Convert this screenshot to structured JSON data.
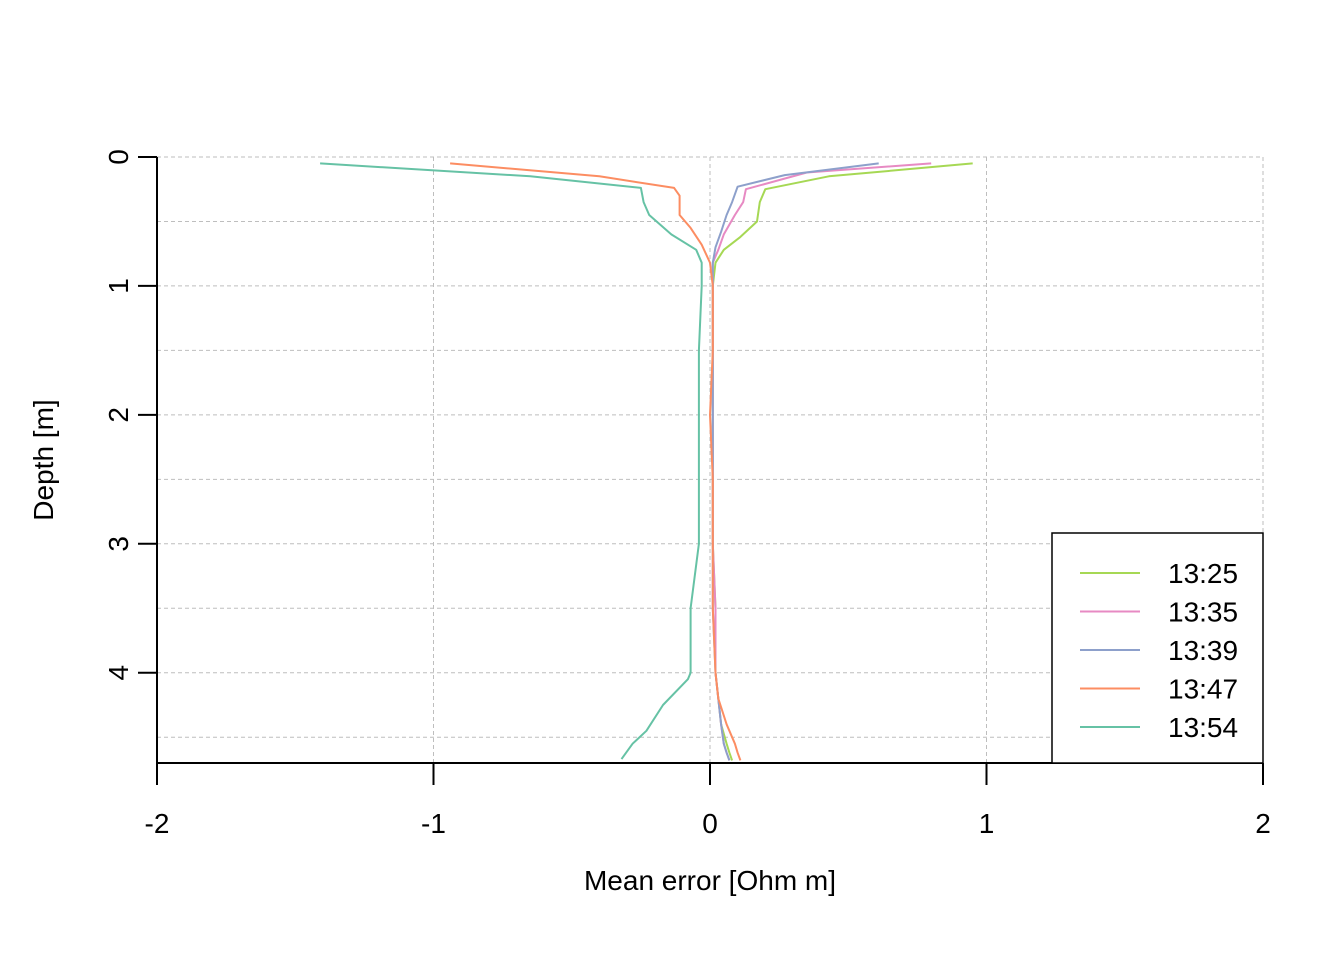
{
  "chart_data": {
    "type": "line",
    "title": "",
    "xlabel": "Mean error [Ohm m]",
    "ylabel": "Depth [m]",
    "xlim": [
      -2,
      2
    ],
    "ylim": [
      4.7,
      0
    ],
    "x_ticks": [
      "-2",
      "-1",
      "0",
      "1",
      "2"
    ],
    "y_ticks": [
      "0",
      "1",
      "2",
      "3",
      "4"
    ],
    "grid": true,
    "legend_position": "bottom-right",
    "series": [
      {
        "name": "13:25",
        "color": "#a6d854",
        "x": [
          0.95,
          0.43,
          0.2,
          0.18,
          0.17,
          0.11,
          0.05,
          0.02,
          0.01,
          0.01,
          0.01,
          0.01,
          0.01,
          0.02,
          0.02,
          0.03,
          0.04,
          0.06,
          0.07,
          0.08
        ],
        "y": [
          0.05,
          0.15,
          0.25,
          0.35,
          0.5,
          0.62,
          0.72,
          0.82,
          1.0,
          1.5,
          2.0,
          2.5,
          3.0,
          3.5,
          4.0,
          4.2,
          4.4,
          4.55,
          4.62,
          4.68
        ]
      },
      {
        "name": "13:35",
        "color": "#e78ac3",
        "x": [
          0.8,
          0.35,
          0.13,
          0.12,
          0.09,
          0.05,
          0.03,
          0.01,
          0.01,
          0.01,
          0.01,
          0.01,
          0.01,
          0.02,
          0.02,
          0.03,
          0.04,
          0.05,
          0.06,
          0.07
        ],
        "y": [
          0.05,
          0.12,
          0.25,
          0.35,
          0.45,
          0.6,
          0.72,
          0.82,
          1.0,
          1.5,
          2.0,
          2.5,
          3.0,
          3.5,
          4.0,
          4.2,
          4.4,
          4.55,
          4.62,
          4.68
        ]
      },
      {
        "name": "13:39",
        "color": "#8da0cb",
        "x": [
          0.61,
          0.27,
          0.1,
          0.08,
          0.06,
          0.04,
          0.02,
          0.01,
          0.01,
          0.01,
          0.01,
          0.01,
          0.01,
          0.01,
          0.02,
          0.03,
          0.04,
          0.05,
          0.06,
          0.07
        ],
        "y": [
          0.05,
          0.14,
          0.23,
          0.35,
          0.45,
          0.58,
          0.7,
          0.82,
          1.0,
          1.5,
          2.0,
          2.5,
          3.0,
          3.5,
          4.0,
          4.2,
          4.4,
          4.55,
          4.62,
          4.68
        ]
      },
      {
        "name": "13:47",
        "color": "#fc8d62",
        "x": [
          -0.94,
          -0.4,
          -0.13,
          -0.11,
          -0.11,
          -0.07,
          -0.03,
          0.0,
          0.01,
          0.01,
          0.0,
          0.01,
          0.01,
          0.01,
          0.02,
          0.03,
          0.06,
          0.09,
          0.1,
          0.11
        ],
        "y": [
          0.05,
          0.15,
          0.24,
          0.3,
          0.45,
          0.55,
          0.68,
          0.82,
          1.0,
          1.5,
          2.0,
          2.5,
          3.0,
          3.5,
          4.0,
          4.2,
          4.4,
          4.55,
          4.62,
          4.68
        ]
      },
      {
        "name": "13:54",
        "color": "#66c2a5",
        "x": [
          -1.41,
          -0.65,
          -0.25,
          -0.24,
          -0.22,
          -0.14,
          -0.05,
          -0.03,
          -0.03,
          -0.04,
          -0.04,
          -0.04,
          -0.04,
          -0.07,
          -0.07,
          -0.08,
          -0.17,
          -0.23,
          -0.28,
          -0.32
        ],
        "y": [
          0.05,
          0.15,
          0.24,
          0.35,
          0.45,
          0.6,
          0.72,
          0.82,
          1.0,
          1.5,
          2.0,
          2.5,
          3.0,
          3.5,
          4.0,
          4.05,
          4.25,
          4.45,
          4.55,
          4.67
        ]
      }
    ]
  }
}
